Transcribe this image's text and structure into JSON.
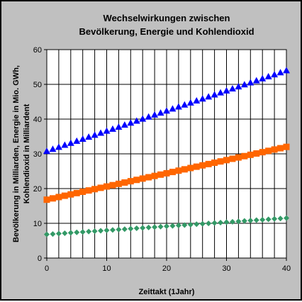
{
  "chart_data": {
    "type": "scatter",
    "title_lines": [
      "Wechselwirkungen zwischen",
      "Bevölkerung, Energie und Kohlendioxid"
    ],
    "xlabel": "Zeittakt (1Jahr)",
    "ylabel_lines": [
      "Bevölkerung in Milliarden, Energie in Mio. GWh,",
      "Kohlendioxid in Milliardent"
    ],
    "xlim": [
      0,
      40
    ],
    "ylim": [
      0,
      60
    ],
    "x_ticks": [
      0,
      10,
      20,
      30,
      40
    ],
    "y_ticks": [
      0,
      10,
      20,
      30,
      40,
      50,
      60
    ],
    "x_grid_step": 2,
    "grid": true,
    "plot_background": "#ffffff",
    "frame_background": "#c0c0c0",
    "series": [
      {
        "marker": "triangle",
        "color": "#0000ff",
        "x_start": 0,
        "x_end": 40,
        "x_step": 1,
        "y_start": 30.8,
        "y_end": 54.0
      },
      {
        "marker": "square",
        "color": "#ff6600",
        "x_start": 0,
        "x_end": 40,
        "x_step": 1,
        "y_start": 16.8,
        "y_end": 32.0
      },
      {
        "marker": "diamond",
        "color": "#339966",
        "x_start": 0,
        "x_end": 40,
        "x_step": 1,
        "y_start": 6.8,
        "y_end": 11.5
      }
    ]
  }
}
